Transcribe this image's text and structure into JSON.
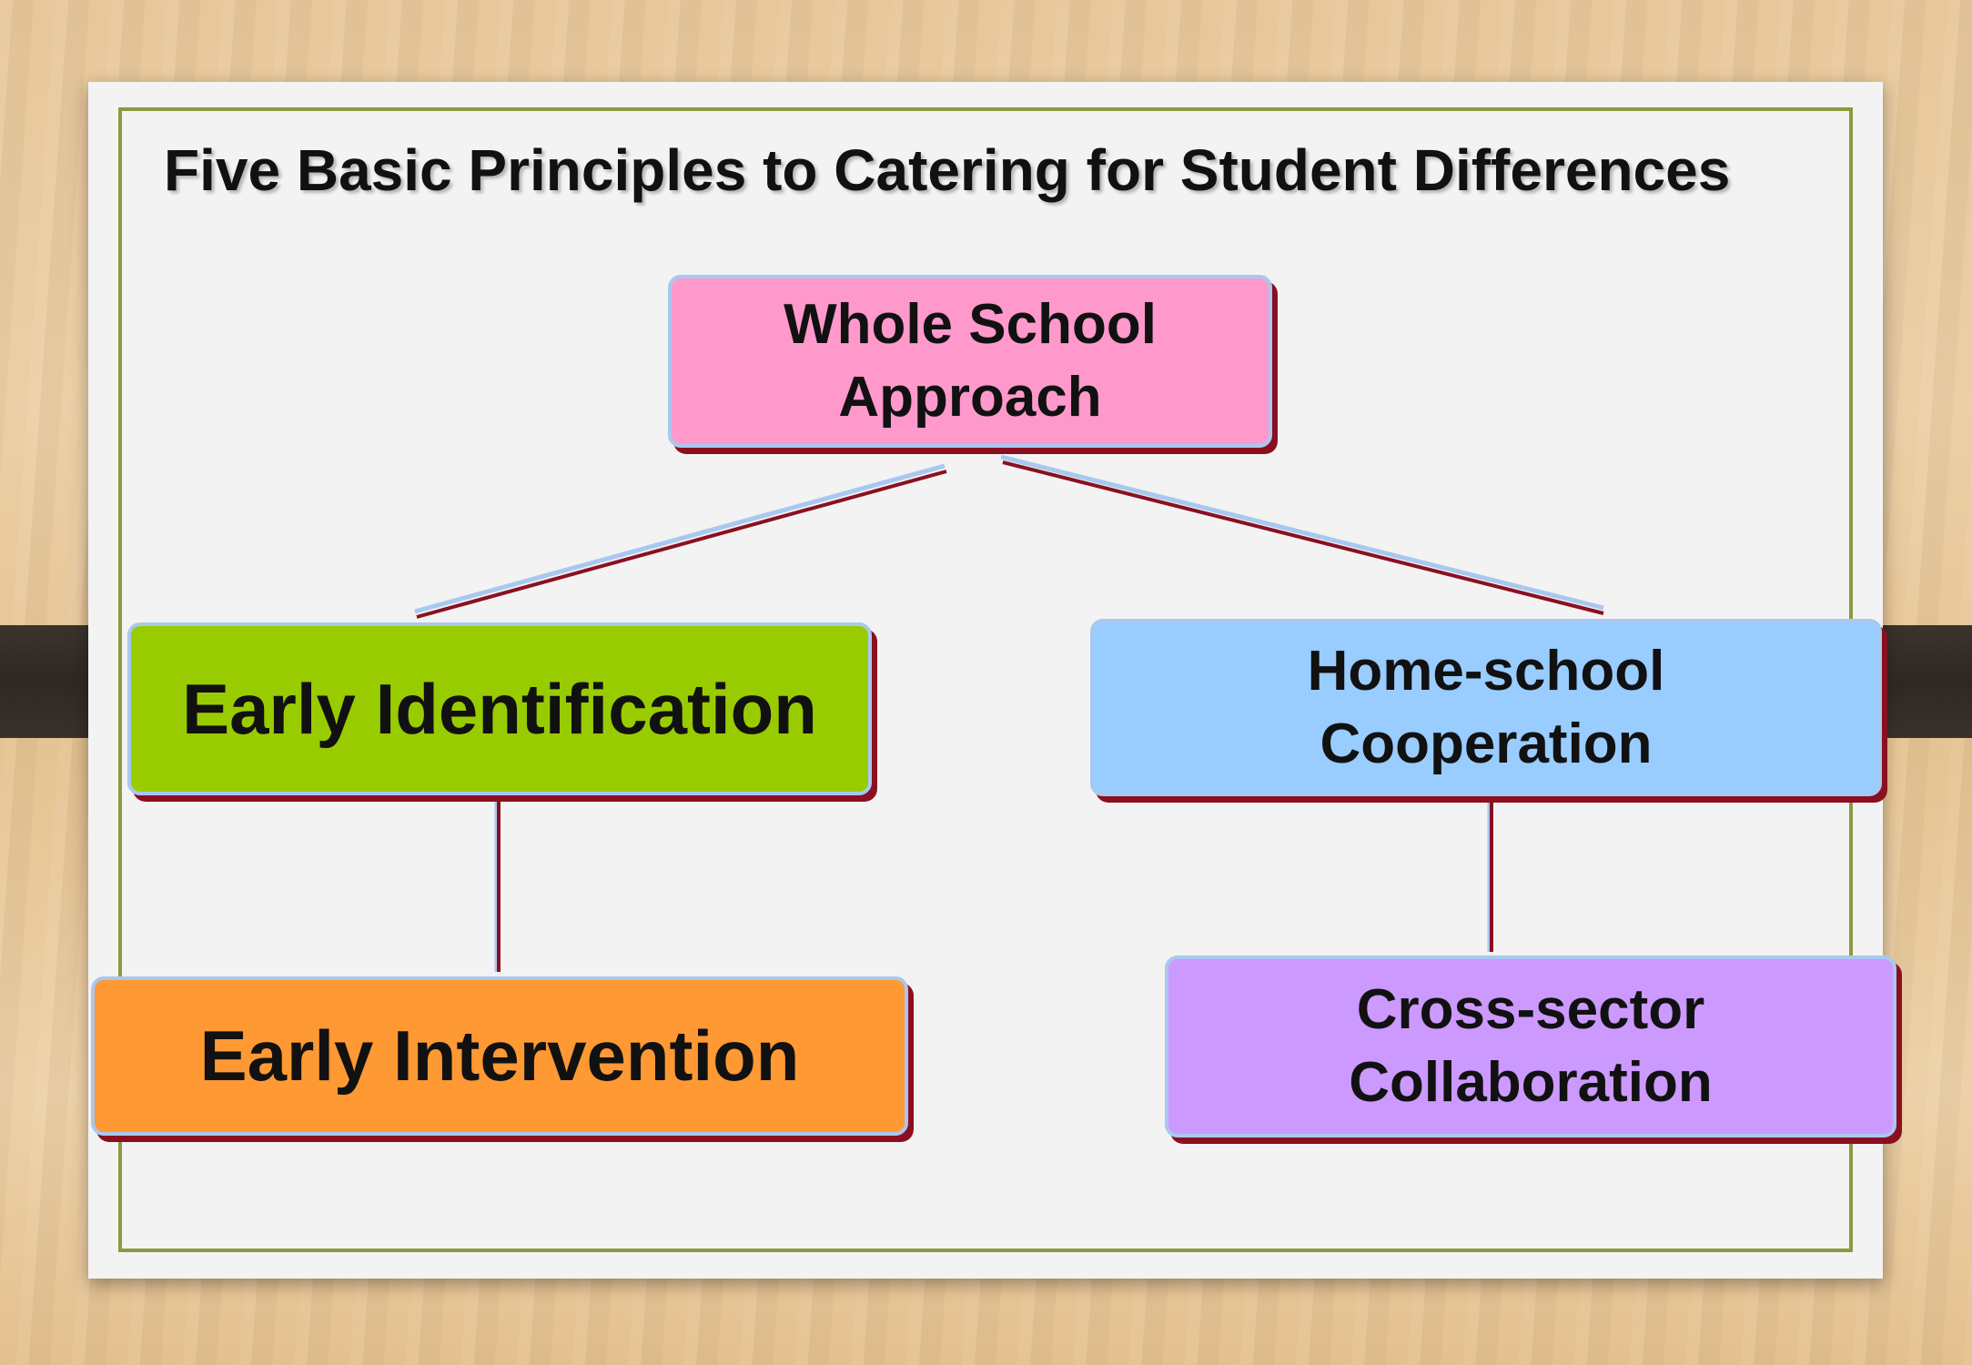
{
  "title": "Five Basic Principles to Catering for Student Differences",
  "nodes": {
    "whole_school": {
      "line1": "Whole School",
      "line2": "Approach",
      "color": "#ff99cc"
    },
    "early_identification": {
      "label": "Early Identification",
      "color": "#99cc00"
    },
    "home_school": {
      "line1": "Home-school",
      "line2": "Cooperation",
      "color": "#99ccff"
    },
    "early_intervention": {
      "label": "Early Intervention",
      "color": "#ff9933"
    },
    "cross_sector": {
      "line1": "Cross-sector",
      "line2": "Collaboration",
      "color": "#cc99ff"
    }
  },
  "edges": [
    {
      "from": "Whole School Approach",
      "to": "Early Identification"
    },
    {
      "from": "Whole School Approach",
      "to": "Home-school Cooperation"
    },
    {
      "from": "Early Identification",
      "to": "Early Intervention"
    },
    {
      "from": "Home-school Cooperation",
      "to": "Cross-sector Collaboration"
    }
  ],
  "colors": {
    "frame": "#8b9a3f",
    "box_border": "#a9c8f0",
    "box_shadow": "#8a1020",
    "connector": "#8a1020"
  }
}
